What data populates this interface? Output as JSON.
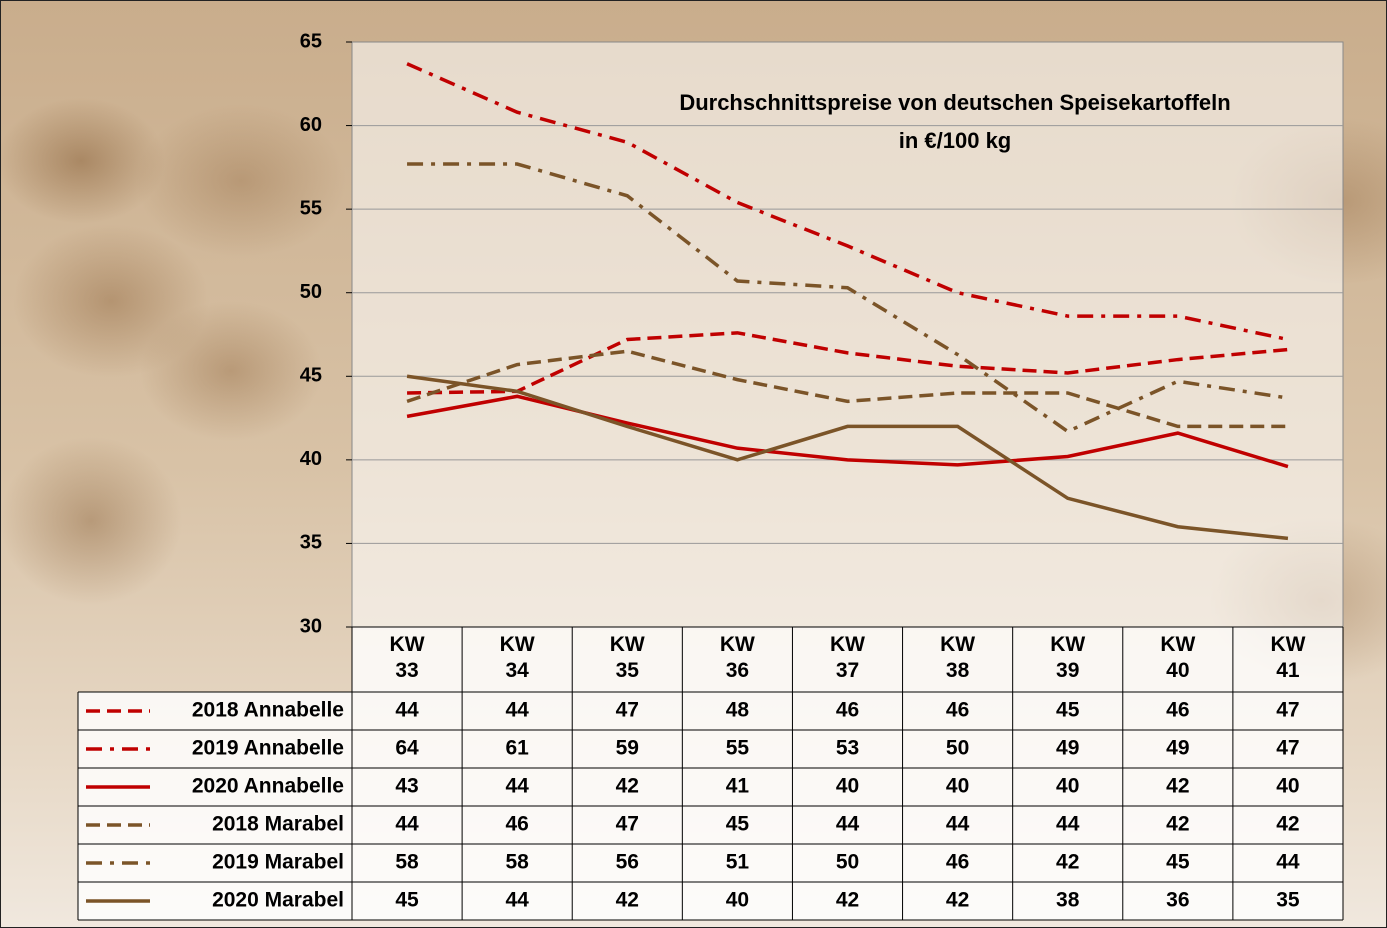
{
  "chart_data": {
    "type": "line",
    "title": "Durchschnittspreise von deutschen Speisekartoffeln",
    "subtitle": "in €/100 kg",
    "categories": [
      "KW 33",
      "KW 34",
      "KW 35",
      "KW 36",
      "KW 37",
      "KW 38",
      "KW 39",
      "KW 40",
      "KW 41"
    ],
    "ylim": [
      30,
      65
    ],
    "yticks": [
      30,
      35,
      40,
      45,
      50,
      55,
      60,
      65
    ],
    "grid": true,
    "series": [
      {
        "name": "2018 Annabelle",
        "color": "#c00000",
        "dash": "dash",
        "values": [
          44.0,
          44.1,
          47.2,
          47.6,
          46.4,
          45.6,
          45.2,
          46.0,
          46.6
        ],
        "value_labels": [
          "44",
          "44",
          "47",
          "48",
          "46",
          "46",
          "45",
          "46",
          "47"
        ]
      },
      {
        "name": "2019 Annabelle",
        "color": "#c00000",
        "dash": "dashdot",
        "values": [
          63.7,
          60.8,
          59.0,
          55.4,
          52.8,
          50.0,
          48.6,
          48.6,
          47.2
        ],
        "value_labels": [
          "64",
          "61",
          "59",
          "55",
          "53",
          "50",
          "49",
          "49",
          "47"
        ]
      },
      {
        "name": "2020 Annabelle",
        "color": "#c00000",
        "dash": "solid",
        "values": [
          42.6,
          43.8,
          42.2,
          40.7,
          40.0,
          39.7,
          40.2,
          41.6,
          39.6
        ],
        "value_labels": [
          "43",
          "44",
          "42",
          "41",
          "40",
          "40",
          "40",
          "42",
          "40"
        ]
      },
      {
        "name": "2018 Marabel",
        "color": "#7b5428",
        "dash": "dash",
        "values": [
          43.5,
          45.7,
          46.5,
          44.8,
          43.5,
          44.0,
          44.0,
          42.0,
          42.0
        ],
        "value_labels": [
          "44",
          "46",
          "47",
          "45",
          "44",
          "44",
          "44",
          "42",
          "42"
        ]
      },
      {
        "name": "2019 Marabel",
        "color": "#7b5428",
        "dash": "dashdot",
        "values": [
          57.7,
          57.7,
          55.8,
          50.7,
          50.3,
          46.3,
          41.7,
          44.7,
          43.7
        ],
        "value_labels": [
          "58",
          "58",
          "56",
          "51",
          "50",
          "46",
          "42",
          "45",
          "44"
        ]
      },
      {
        "name": "2020 Marabel",
        "color": "#7b5428",
        "dash": "solid",
        "values": [
          45.0,
          44.1,
          42.0,
          40.0,
          42.0,
          42.0,
          37.7,
          36.0,
          35.3
        ],
        "value_labels": [
          "45",
          "44",
          "42",
          "40",
          "42",
          "42",
          "38",
          "36",
          "35"
        ]
      }
    ]
  }
}
